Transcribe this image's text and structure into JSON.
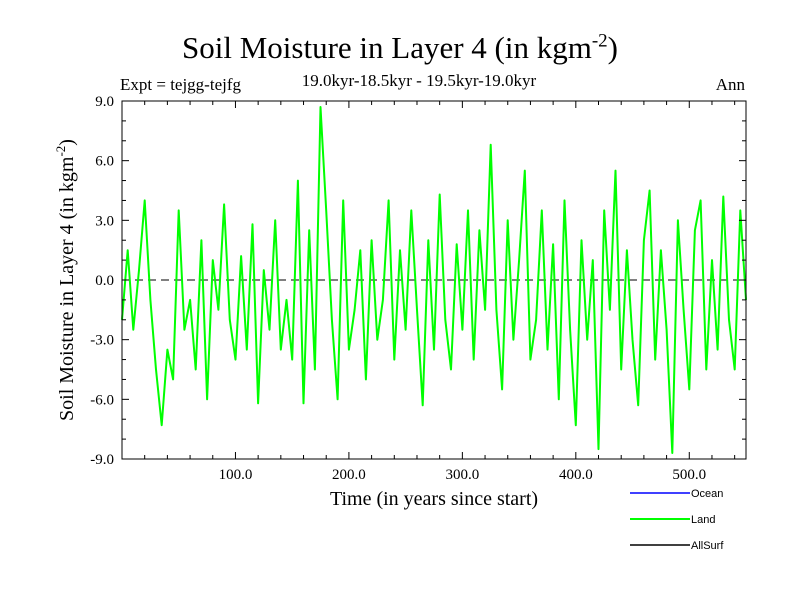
{
  "chart_data": {
    "type": "line",
    "title": "Soil Moisture in Layer 4 (in kgm",
    "title_sup": "-2",
    "title_close": ")",
    "expt_label": "Expt = tejgg-tejfg",
    "subtitle": "19.0kyr-18.5kyr - 19.5kyr-19.0kyr",
    "season": "Ann",
    "xlabel": "Time (in years since start)",
    "ylabel": "Soil Moisture in Layer 4 (in kgm",
    "ylabel_sup": "-2",
    "ylabel_close": ")",
    "xlim": [
      0,
      550
    ],
    "ylim": [
      -9,
      9
    ],
    "x_ticks": [
      100,
      200,
      300,
      400,
      500
    ],
    "x_tick_labels": [
      "100.0",
      "200.0",
      "300.0",
      "400.0",
      "500.0"
    ],
    "y_ticks": [
      9,
      6,
      3,
      0,
      -3,
      -6,
      -9
    ],
    "y_tick_labels": [
      "9.0",
      "6.0",
      "3.0",
      "0.0",
      "-3.0",
      "-6.0",
      "-9.0"
    ],
    "zero_line": "dashed",
    "legend": [
      {
        "name": "Ocean",
        "color": "#0000ff"
      },
      {
        "name": "Land",
        "color": "#00ff00"
      },
      {
        "name": "AllSurf",
        "color": "#000000"
      }
    ],
    "series": [
      {
        "name": "Land",
        "color": "#00ff00",
        "x": [
          0,
          5,
          10,
          15,
          20,
          25,
          30,
          35,
          40,
          45,
          50,
          55,
          60,
          65,
          70,
          75,
          80,
          85,
          90,
          95,
          100,
          105,
          110,
          115,
          120,
          125,
          130,
          135,
          140,
          145,
          150,
          155,
          160,
          165,
          170,
          175,
          180,
          185,
          190,
          195,
          200,
          205,
          210,
          215,
          220,
          225,
          230,
          235,
          240,
          245,
          250,
          255,
          260,
          265,
          270,
          275,
          280,
          285,
          290,
          295,
          300,
          305,
          310,
          315,
          320,
          325,
          330,
          335,
          340,
          345,
          350,
          355,
          360,
          365,
          370,
          375,
          380,
          385,
          390,
          395,
          400,
          405,
          410,
          415,
          420,
          425,
          430,
          435,
          440,
          445,
          450,
          455,
          460,
          465,
          470,
          475,
          480,
          485,
          490,
          495,
          500,
          505,
          510,
          515,
          520,
          525,
          530,
          535,
          540,
          545,
          550
        ],
        "values": [
          -2.0,
          1.5,
          -2.5,
          0.5,
          4.0,
          -1.0,
          -4.5,
          -7.3,
          -3.5,
          -5.0,
          3.5,
          -2.5,
          -1.0,
          -4.5,
          2.0,
          -6.0,
          1.0,
          -1.5,
          3.8,
          -2.0,
          -4.0,
          1.2,
          -3.5,
          2.8,
          -6.2,
          0.5,
          -2.5,
          3.0,
          -3.5,
          -1.0,
          -4.0,
          5.0,
          -6.2,
          2.5,
          -4.5,
          8.7,
          3.5,
          -2.0,
          -6.0,
          4.0,
          -3.5,
          -1.5,
          1.5,
          -5.0,
          2.0,
          -3.0,
          -1.0,
          4.0,
          -4.0,
          1.5,
          -2.5,
          3.5,
          -1.5,
          -6.3,
          2.0,
          -3.5,
          4.3,
          -2.0,
          -4.5,
          1.8,
          -2.5,
          3.5,
          -4.0,
          2.5,
          -1.5,
          6.8,
          -1.5,
          -5.5,
          3.0,
          -3.0,
          1.0,
          5.5,
          -4.0,
          -2.0,
          3.5,
          -3.5,
          1.8,
          -6.0,
          4.0,
          -2.5,
          -7.3,
          2.0,
          -3.0,
          1.0,
          -8.5,
          3.5,
          -1.5,
          5.5,
          -4.5,
          1.5,
          -3.0,
          -6.3,
          2.0,
          4.5,
          -4.0,
          1.5,
          -2.5,
          -8.7,
          3.0,
          -1.5,
          -5.5,
          2.5,
          4.0,
          -4.5,
          1.0,
          -3.5,
          4.2,
          -2.0,
          -4.5,
          3.5,
          -1.0
        ]
      }
    ]
  }
}
